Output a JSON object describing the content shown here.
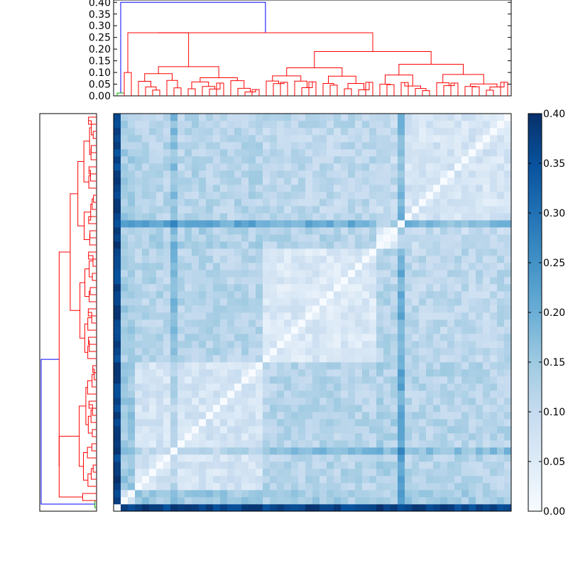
{
  "chart_data": [
    {
      "type": "dendrogram",
      "orientation": "top",
      "title": "",
      "ylim": [
        0,
        0.41
      ],
      "yticks": [
        "0.00",
        "0.05",
        "0.10",
        "0.15",
        "0.20",
        "0.25",
        "0.30",
        "0.35",
        "0.40"
      ],
      "yticks_values": [
        0,
        0.05,
        0.1,
        0.15,
        0.2,
        0.25,
        0.3,
        0.35,
        0.4
      ],
      "n_leaves": 56,
      "link_colors": [
        "blue",
        "green",
        "red"
      ],
      "merges": [
        {
          "leaves": [
            0,
            1
          ],
          "height": 0.012,
          "color": "#00aa00"
        },
        {
          "leaves": [
            0,
            55
          ],
          "height": 0.4,
          "color": "#0000ff"
        },
        {
          "group": "left-red-cluster",
          "height": 0.27,
          "color": "#ff0000"
        },
        {
          "group": "central-red-cluster",
          "height": 0.19,
          "color": "#ff0000"
        },
        {
          "group": "right-red-cluster",
          "height": 0.17,
          "color": "#ff0000"
        }
      ]
    },
    {
      "type": "dendrogram",
      "orientation": "left",
      "n_leaves": 56,
      "mirrors": "top"
    },
    {
      "type": "heatmap",
      "title": "",
      "rows": 56,
      "cols": 56,
      "colormap": "Blues",
      "vmin": 0.0,
      "vmax": 0.4,
      "diagonal_value": 0.0,
      "outlier_leaf_distance": 0.37,
      "typical_within_cluster": 0.08,
      "colorbar_ticks": [
        "0.00",
        "0.05",
        "0.10",
        "0.15",
        "0.20",
        "0.25",
        "0.30",
        "0.35",
        "0.40"
      ],
      "colorbar_values": [
        0.0,
        0.05,
        0.1,
        0.15,
        0.2,
        0.25,
        0.3,
        0.35,
        0.4
      ]
    }
  ]
}
